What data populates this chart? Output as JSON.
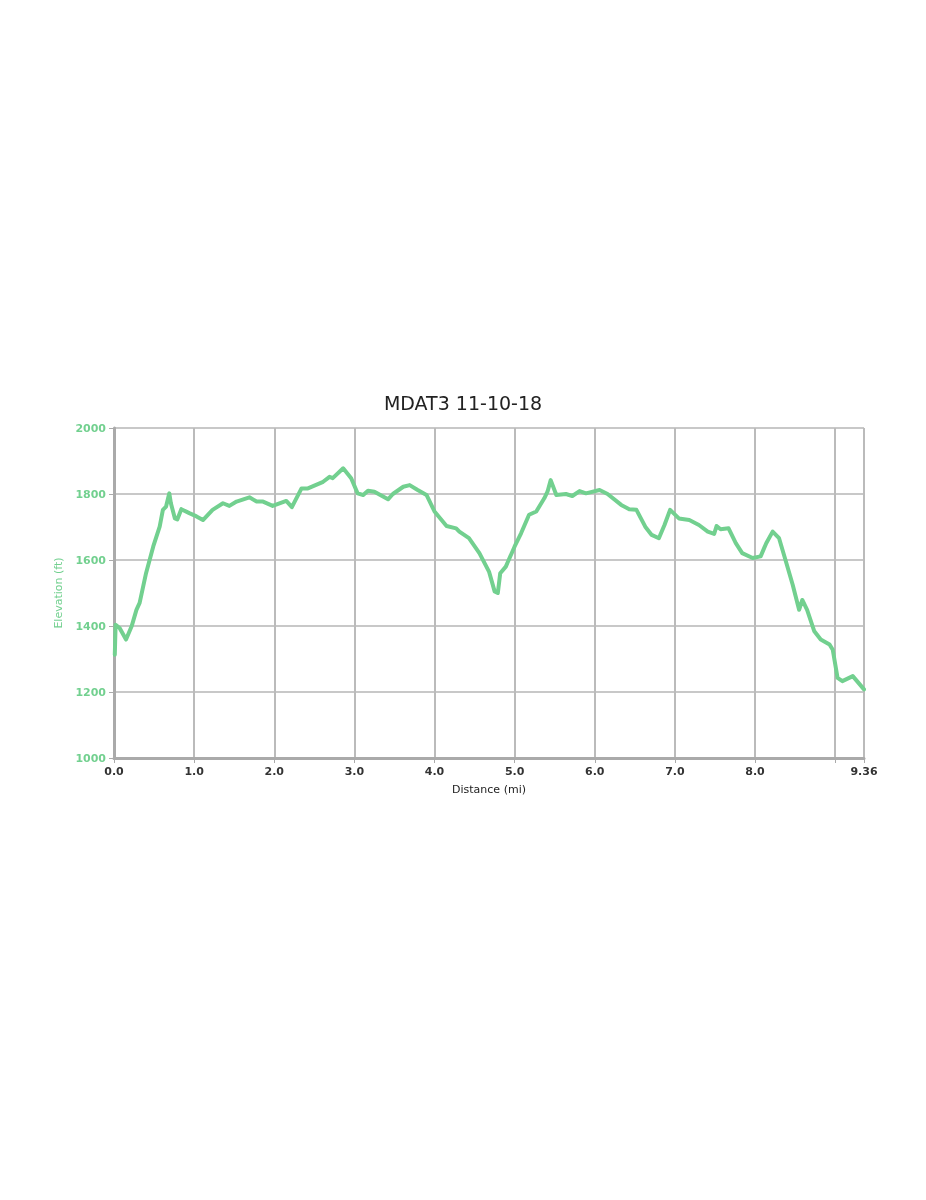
{
  "chart_data": {
    "type": "line",
    "title": "MDAT3 11-10-18",
    "xlabel": "Distance (mi)",
    "ylabel": "Elevation (ft)",
    "xlim": [
      0,
      9.36
    ],
    "xticks": [
      {
        "value": 0,
        "label": "0.0"
      },
      {
        "value": 1,
        "label": "1.0"
      },
      {
        "value": 2,
        "label": "2.0"
      },
      {
        "value": 3,
        "label": "3.0"
      },
      {
        "value": 4,
        "label": "4.0"
      },
      {
        "value": 5,
        "label": "5.0"
      },
      {
        "value": 6,
        "label": "6.0"
      },
      {
        "value": 7,
        "label": "7.0"
      },
      {
        "value": 8,
        "label": "8.0"
      },
      {
        "value": 9,
        "label": null
      },
      9.36
    ],
    "ylim": [
      1000,
      2000
    ],
    "yticks": [
      1000,
      1200,
      1400,
      1600,
      1800,
      2000
    ],
    "grid": true,
    "marker": "none",
    "line_style": "solid",
    "series": [
      {
        "color": "#72d08f",
        "x": [
          0.01,
          0.02,
          0.07,
          0.15,
          0.22,
          0.28,
          0.32,
          0.4,
          0.49,
          0.57,
          0.61,
          0.65,
          0.69,
          0.71,
          0.76,
          0.79,
          0.84,
          0.94,
          1.03,
          1.11,
          1.23,
          1.36,
          1.44,
          1.53,
          1.69,
          1.78,
          1.86,
          1.98,
          2.15,
          2.22,
          2.34,
          2.42,
          2.61,
          2.69,
          2.73,
          2.86,
          2.96,
          3.04,
          3.11,
          3.17,
          3.25,
          3.42,
          3.48,
          3.61,
          3.69,
          3.79,
          3.9,
          4.0,
          4.15,
          4.27,
          4.31,
          4.43,
          4.56,
          4.68,
          4.75,
          4.79,
          4.82,
          4.89,
          5.0,
          5.08,
          5.18,
          5.27,
          5.37,
          5.41,
          5.45,
          5.52,
          5.64,
          5.72,
          5.81,
          5.89,
          6.06,
          6.16,
          6.33,
          6.43,
          6.52,
          6.63,
          6.71,
          6.8,
          6.87,
          6.94,
          7.05,
          7.18,
          7.3,
          7.41,
          7.49,
          7.52,
          7.57,
          7.67,
          7.76,
          7.84,
          7.97,
          8.07,
          8.14,
          8.22,
          8.3,
          8.38,
          8.47,
          8.55,
          8.59,
          8.65,
          8.74,
          8.82,
          8.93,
          8.97,
          9.03,
          9.09,
          9.22,
          9.36
        ],
        "values": [
          1313,
          1404,
          1394,
          1359,
          1399,
          1449,
          1470,
          1560,
          1641,
          1701,
          1752,
          1762,
          1802,
          1772,
          1726,
          1723,
          1754,
          1742,
          1732,
          1721,
          1752,
          1772,
          1764,
          1777,
          1790,
          1777,
          1777,
          1764,
          1779,
          1760,
          1817,
          1817,
          1837,
          1852,
          1848,
          1878,
          1848,
          1802,
          1797,
          1810,
          1807,
          1784,
          1800,
          1822,
          1827,
          1812,
          1797,
          1747,
          1703,
          1696,
          1686,
          1666,
          1621,
          1565,
          1505,
          1500,
          1560,
          1580,
          1641,
          1681,
          1737,
          1747,
          1787,
          1807,
          1842,
          1797,
          1800,
          1794,
          1809,
          1802,
          1812,
          1800,
          1767,
          1754,
          1752,
          1701,
          1676,
          1666,
          1706,
          1752,
          1726,
          1721,
          1706,
          1686,
          1679,
          1703,
          1693,
          1696,
          1651,
          1621,
          1606,
          1611,
          1651,
          1686,
          1666,
          1600,
          1525,
          1449,
          1479,
          1449,
          1384,
          1359,
          1344,
          1328,
          1243,
          1233,
          1248,
          1208
        ]
      }
    ]
  }
}
